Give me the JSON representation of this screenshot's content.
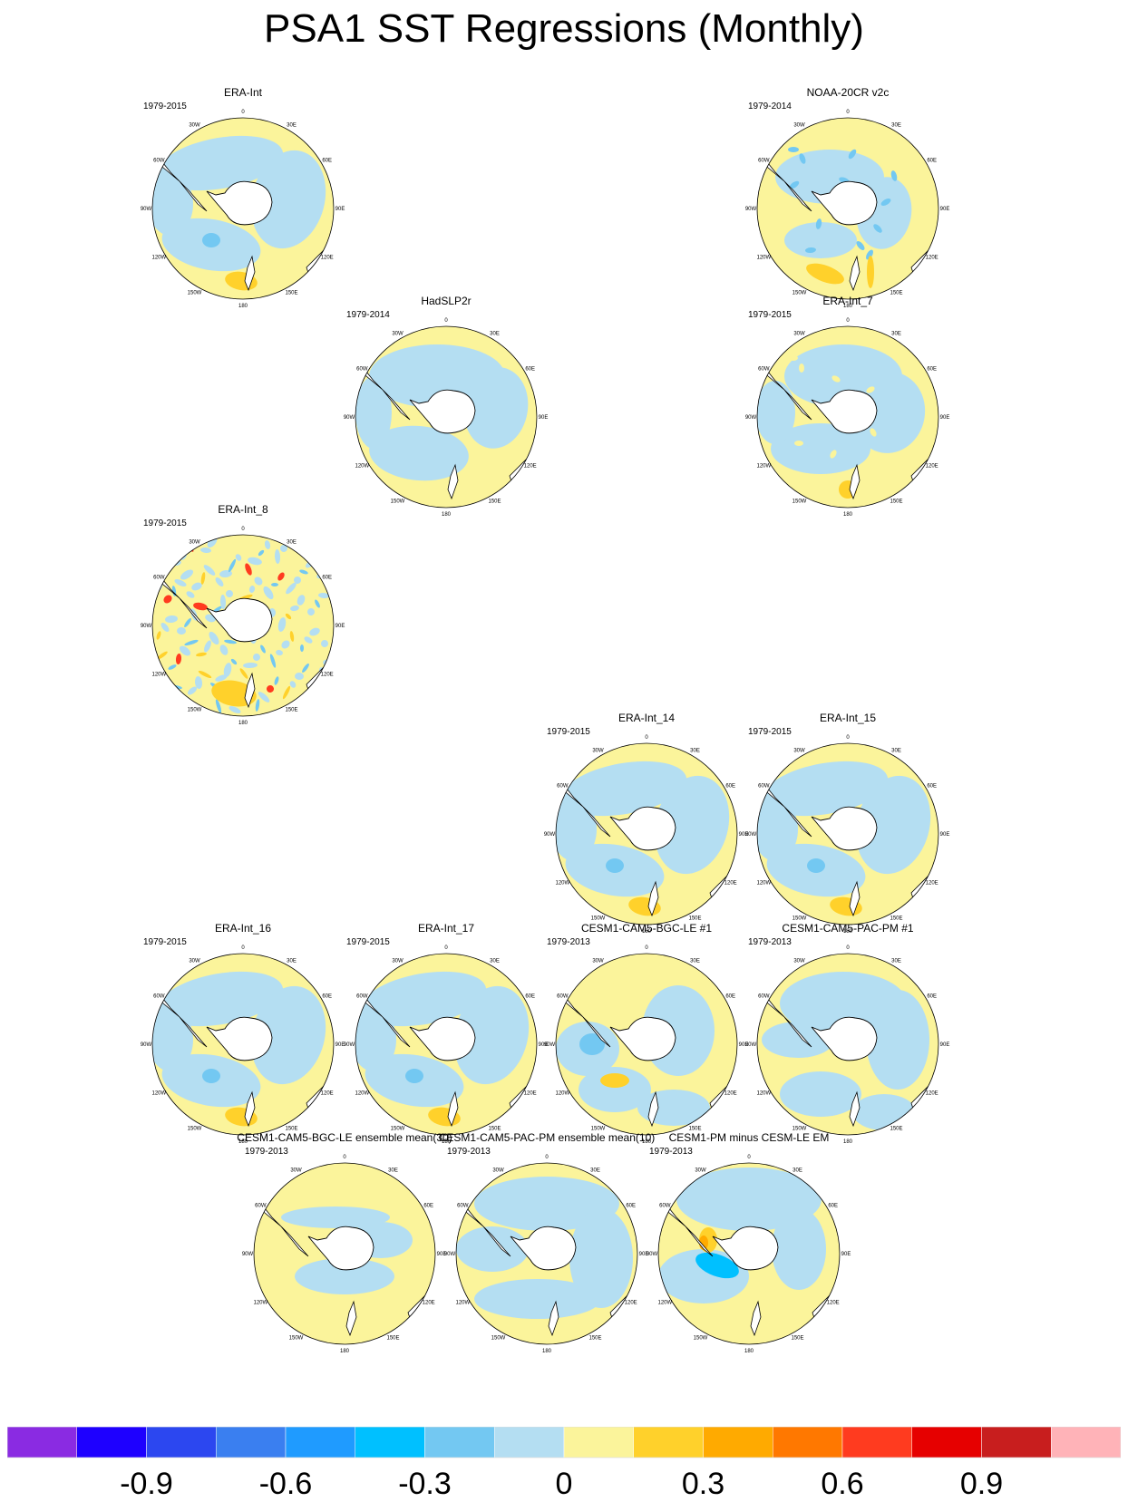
{
  "title": "PSA1 SST Regressions (Monthly)",
  "chart_data": {
    "type": "polar-stereographic map panels",
    "projection": "South Polar Stereographic",
    "longitude_labels": [
      "0",
      "30E",
      "60E",
      "90E",
      "120E",
      "150E",
      "180",
      "150W",
      "120W",
      "90W",
      "60W",
      "30W"
    ],
    "colorbar": {
      "colors": [
        "#8a2be2",
        "#1e00ff",
        "#2c47f0",
        "#3a7ff0",
        "#1f9bff",
        "#00c0ff",
        "#73c8f2",
        "#b4def2",
        "#fbf49b",
        "#ffd12b",
        "#ffaa00",
        "#ff7800",
        "#ff3b1f",
        "#e60000",
        "#c81e1e",
        "#ffb3b8"
      ],
      "tick_labels": [
        "-0.9",
        "-0.6",
        "-0.3",
        "0",
        "0.3",
        "0.6",
        "0.9"
      ],
      "tick_values": [
        -0.9,
        -0.6,
        -0.3,
        0,
        0.3,
        0.6,
        0.9
      ],
      "interval": 0.15
    },
    "panels": [
      {
        "title": "ERA-Int",
        "years": "1979-2015",
        "pattern": "era"
      },
      {
        "title": "NOAA-20CR v2c",
        "years": "1979-2014",
        "pattern": "noaa"
      },
      {
        "title": "HadSLP2r",
        "years": "1979-2014",
        "pattern": "had"
      },
      {
        "title": "ERA-Int_7",
        "years": "1979-2015",
        "pattern": "era7"
      },
      {
        "title": "ERA-Int_8",
        "years": "1979-2015",
        "pattern": "noisy"
      },
      {
        "title": "ERA-Int_14",
        "years": "1979-2015",
        "pattern": "era"
      },
      {
        "title": "ERA-Int_15",
        "years": "1979-2015",
        "pattern": "era"
      },
      {
        "title": "ERA-Int_16",
        "years": "1979-2015",
        "pattern": "era"
      },
      {
        "title": "ERA-Int_17",
        "years": "1979-2015",
        "pattern": "era"
      },
      {
        "title": "CESM1-CAM5-BGC-LE #1",
        "years": "1979-2013",
        "pattern": "bgc1"
      },
      {
        "title": "CESM1-CAM5-PAC-PM #1",
        "years": "1979-2013",
        "pattern": "pac1"
      },
      {
        "title": "CESM1-CAM5-BGC-LE ensemble mean(30)",
        "years": "1979-2013",
        "pattern": "bgcem"
      },
      {
        "title": "CESM1-CAM5-PAC-PM ensemble mean(10)",
        "years": "1979-2013",
        "pattern": "pacem"
      },
      {
        "title": "CESM1-PM minus CESM-LE EM",
        "years": "1979-2013",
        "pattern": "diff"
      }
    ]
  }
}
